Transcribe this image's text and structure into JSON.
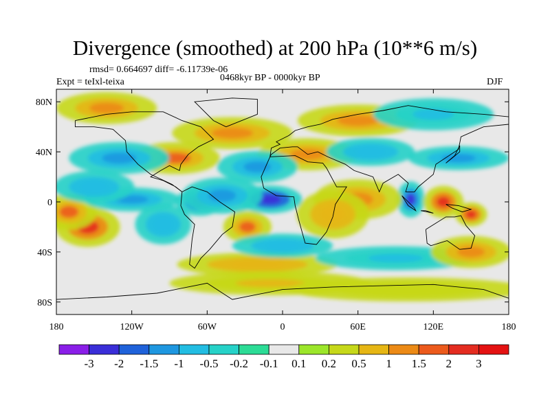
{
  "chart_data": {
    "type": "heatmap",
    "title": "Divergence (smoothed) at 200 hPa (10**6 m/s)",
    "stats_text": "rmsd= 0.664697 diff= -6.11739e-06",
    "period_text": "0468kyr BP - 0000kyr BP",
    "experiment_text": "Expt = teIxl-teixa",
    "season_text": "DJF",
    "xlim": [
      -180,
      180
    ],
    "ylim": [
      -90,
      90
    ],
    "x_ticks": [
      {
        "value": -180,
        "label": "180"
      },
      {
        "value": -120,
        "label": "120W"
      },
      {
        "value": -60,
        "label": "60W"
      },
      {
        "value": 0,
        "label": "0"
      },
      {
        "value": 60,
        "label": "60E"
      },
      {
        "value": 120,
        "label": "120E"
      },
      {
        "value": 180,
        "label": "180"
      }
    ],
    "y_ticks": [
      {
        "value": 80,
        "label": "80N"
      },
      {
        "value": 40,
        "label": "40N"
      },
      {
        "value": 0,
        "label": "0"
      },
      {
        "value": -40,
        "label": "40S"
      },
      {
        "value": -80,
        "label": "80S"
      }
    ],
    "colorbar": {
      "levels": [
        "-3",
        "-2",
        "-1.5",
        "-1",
        "-0.5",
        "-0.2",
        "-0.1",
        "0.1",
        "0.2",
        "0.5",
        "1",
        "1.5",
        "2",
        "3"
      ],
      "colors": [
        "#8a1ee8",
        "#3a2ed8",
        "#1f62da",
        "#1e97e0",
        "#22bde2",
        "#26d2c8",
        "#2cdc96",
        "#e8e8e8",
        "#9ce62a",
        "#c6d81a",
        "#e6b614",
        "#ec8a16",
        "#ec5a1c",
        "#e42c20",
        "#e41212"
      ]
    },
    "features": [
      {
        "lon": -10,
        "lat": 2,
        "value": -3.0,
        "rx": 16,
        "ry": 7
      },
      {
        "lon": -66,
        "lat": 0,
        "value": -1.8,
        "rx": 12,
        "ry": 7
      },
      {
        "lon": -48,
        "lat": 5,
        "value": -1.2,
        "rx": 20,
        "ry": 9
      },
      {
        "lon": -155,
        "lat": -20,
        "value": 2.2,
        "rx": 16,
        "ry": 10
      },
      {
        "lon": -170,
        "lat": -8,
        "value": 1.5,
        "rx": 14,
        "ry": 9
      },
      {
        "lon": 102,
        "lat": 2,
        "value": -2.2,
        "rx": 7,
        "ry": 9
      },
      {
        "lon": 128,
        "lat": 0,
        "value": 2.4,
        "rx": 10,
        "ry": 8
      },
      {
        "lon": 150,
        "lat": -10,
        "value": 2.6,
        "rx": 8,
        "ry": 6
      },
      {
        "lon": 60,
        "lat": 2,
        "value": 1.4,
        "rx": 22,
        "ry": 10
      },
      {
        "lon": 40,
        "lat": -10,
        "value": 0.9,
        "rx": 18,
        "ry": 12
      },
      {
        "lon": -28,
        "lat": -20,
        "value": 1.6,
        "rx": 12,
        "ry": 8
      },
      {
        "lon": -95,
        "lat": -18,
        "value": -0.9,
        "rx": 14,
        "ry": 10
      },
      {
        "lon": -120,
        "lat": 2,
        "value": -1.4,
        "rx": 24,
        "ry": 6
      },
      {
        "lon": -150,
        "lat": 12,
        "value": -1.0,
        "rx": 20,
        "ry": 8
      },
      {
        "lon": -85,
        "lat": 35,
        "value": 1.6,
        "rx": 22,
        "ry": 8
      },
      {
        "lon": 20,
        "lat": 38,
        "value": 1.2,
        "rx": 25,
        "ry": 8
      },
      {
        "lon": -20,
        "lat": 28,
        "value": -1.3,
        "rx": 20,
        "ry": 8
      },
      {
        "lon": 70,
        "lat": 40,
        "value": -1.0,
        "rx": 22,
        "ry": 7
      },
      {
        "lon": 140,
        "lat": 35,
        "value": -1.2,
        "rx": 25,
        "ry": 6
      },
      {
        "lon": -130,
        "lat": 35,
        "value": -1.1,
        "rx": 25,
        "ry": 8
      },
      {
        "lon": -40,
        "lat": 55,
        "value": 1.1,
        "rx": 30,
        "ry": 8
      },
      {
        "lon": 60,
        "lat": 65,
        "value": 1.0,
        "rx": 30,
        "ry": 8
      },
      {
        "lon": 120,
        "lat": 70,
        "value": -0.6,
        "rx": 30,
        "ry": 8
      },
      {
        "lon": -140,
        "lat": 75,
        "value": 1.0,
        "rx": 25,
        "ry": 8
      },
      {
        "lon": -20,
        "lat": -50,
        "value": 0.9,
        "rx": 40,
        "ry": 6
      },
      {
        "lon": 90,
        "lat": -45,
        "value": -0.6,
        "rx": 40,
        "ry": 6
      },
      {
        "lon": 150,
        "lat": -40,
        "value": 1.0,
        "rx": 20,
        "ry": 8
      },
      {
        "lon": 0,
        "lat": -35,
        "value": -0.8,
        "rx": 25,
        "ry": 6
      },
      {
        "lon": -10,
        "lat": -65,
        "value": 0.6,
        "rx": 50,
        "ry": 6
      },
      {
        "lon": 100,
        "lat": -70,
        "value": 0.4,
        "rx": 60,
        "ry": 6
      }
    ]
  }
}
